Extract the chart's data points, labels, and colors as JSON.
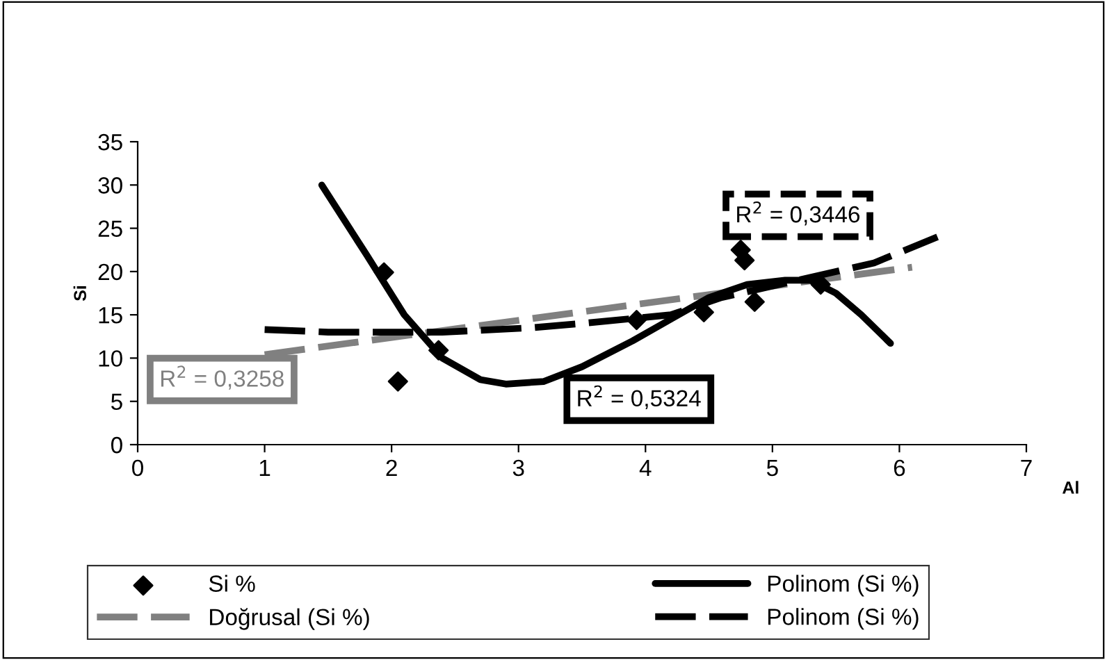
{
  "chart_data": {
    "type": "scatter",
    "xlabel": "Al",
    "ylabel": "Si",
    "xlim": [
      0,
      7
    ],
    "xticks": [
      0,
      1,
      2,
      3,
      4,
      5,
      6,
      7
    ],
    "ylim": [
      0,
      35
    ],
    "yticks": [
      0,
      5,
      10,
      15,
      20,
      25,
      30,
      35
    ],
    "grid": false,
    "legend": "bottom",
    "series": [
      {
        "name": "Si %",
        "marker": "diamond",
        "color": "#000000",
        "x": [
          1.94,
          2.05,
          2.37,
          3.93,
          4.46,
          4.75,
          4.78,
          4.86,
          5.38
        ],
        "values": [
          19.9,
          7.3,
          10.9,
          14.4,
          15.3,
          22.5,
          21.3,
          16.5,
          18.5
        ]
      },
      {
        "name": "Doğrusal (Si %)",
        "type": "line",
        "line_style": "dashed",
        "color": "#808080",
        "x": [
          1.0,
          6.1
        ],
        "values": [
          10.4,
          20.5
        ]
      },
      {
        "name": "Polinom (Si %)",
        "type": "line",
        "line_style": "solid",
        "color": "#000000",
        "x": [
          1.45,
          1.8,
          2.1,
          2.4,
          2.7,
          2.9,
          3.2,
          3.5,
          3.9,
          4.2,
          4.5,
          4.8,
          5.1,
          5.3,
          5.5,
          5.7,
          5.93
        ],
        "values": [
          30,
          22,
          15,
          10,
          7.5,
          7,
          7.3,
          9,
          12,
          14.5,
          17,
          18.5,
          19,
          19,
          17.5,
          15,
          11.7
        ]
      },
      {
        "name": "Polinom (Si %)",
        "type": "line",
        "line_style": "dashed",
        "color": "#000000",
        "x": [
          1.0,
          1.5,
          2.4,
          3.1,
          3.5,
          4.2,
          4.6,
          5.2,
          5.8,
          6.3
        ],
        "values": [
          13.3,
          13,
          13,
          13.5,
          14,
          15,
          17,
          19,
          21,
          24
        ]
      }
    ],
    "annotations": [
      "R$^{2}$ = 0,3258",
      "R$^{2}$ = 0,5324",
      "R$^{2}$ = 0,3446"
    ]
  }
}
